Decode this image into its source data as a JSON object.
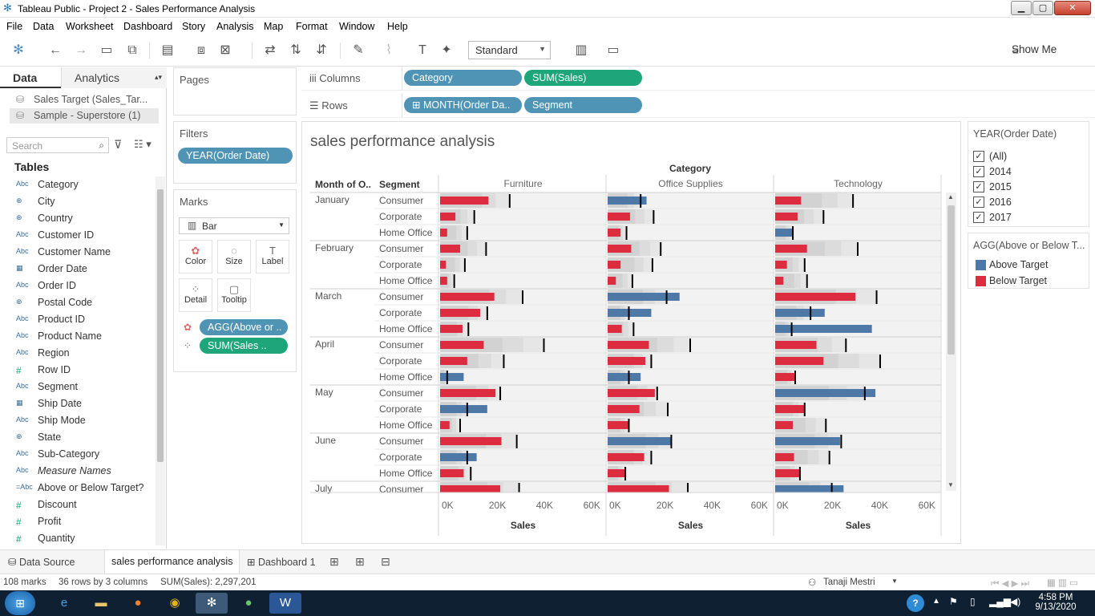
{
  "window": {
    "title": "Tableau Public - Project 2 - Sales Performance Analysis",
    "min": "▁",
    "max": "▢",
    "close": "✕"
  },
  "menu": [
    "File",
    "Data",
    "Worksheet",
    "Dashboard",
    "Story",
    "Analysis",
    "Map",
    "Format",
    "Window",
    "Help"
  ],
  "toolbar": {
    "fit_select": "Standard",
    "show_me": "Show Me"
  },
  "left": {
    "tab_data": "Data",
    "tab_analytics": "Analytics",
    "datasources": [
      "Sales Target (Sales_Tar...",
      "Sample - Superstore (1)"
    ],
    "search_placeholder": "Search",
    "tables_label": "Tables",
    "fields": [
      {
        "type": "Abc",
        "name": "Category"
      },
      {
        "type": "⊕",
        "name": "City"
      },
      {
        "type": "⊕",
        "name": "Country"
      },
      {
        "type": "Abc",
        "name": "Customer ID"
      },
      {
        "type": "Abc",
        "name": "Customer Name"
      },
      {
        "type": "▦",
        "name": "Order Date"
      },
      {
        "type": "Abc",
        "name": "Order ID"
      },
      {
        "type": "⊕",
        "name": "Postal Code"
      },
      {
        "type": "Abc",
        "name": "Product ID"
      },
      {
        "type": "Abc",
        "name": "Product Name"
      },
      {
        "type": "Abc",
        "name": "Region"
      },
      {
        "type": "#",
        "name": "Row ID"
      },
      {
        "type": "Abc",
        "name": "Segment"
      },
      {
        "type": "▦",
        "name": "Ship Date"
      },
      {
        "type": "Abc",
        "name": "Ship Mode"
      },
      {
        "type": "⊕",
        "name": "State"
      },
      {
        "type": "Abc",
        "name": "Sub-Category"
      },
      {
        "type": "Abc",
        "name": "Measure Names"
      },
      {
        "type": "=Abc",
        "name": "Above or Below Target?"
      },
      {
        "type": "#",
        "name": "Discount"
      },
      {
        "type": "#",
        "name": "Profit"
      },
      {
        "type": "#",
        "name": "Quantity"
      }
    ]
  },
  "pages_label": "Pages",
  "filters": {
    "label": "Filters",
    "pill": "YEAR(Order Date)"
  },
  "marks": {
    "label": "Marks",
    "type": "Bar",
    "buttons": [
      "Color",
      "Size",
      "Label",
      "Detail",
      "Tooltip"
    ],
    "pill_color": "AGG(Above or ..",
    "pill_size": "SUM(Sales .."
  },
  "shelves": {
    "columns_label": "Columns",
    "rows_label": "Rows",
    "columns": [
      "Category",
      "SUM(Sales)"
    ],
    "rows": [
      "MONTH(Order Da..",
      "Segment"
    ]
  },
  "view": {
    "title": "sales performance analysis",
    "category_header": "Category",
    "row_header_month": "Month of O..",
    "row_header_segment": "Segment",
    "axis_label": "Sales",
    "axis_ticks": [
      "0K",
      "20K",
      "40K",
      "60K"
    ]
  },
  "chart_data": {
    "type": "bar",
    "title": "sales performance analysis",
    "xlabel": "Sales",
    "xlim": [
      0,
      70000
    ],
    "panes": [
      "Furniture",
      "Office Supplies",
      "Technology"
    ],
    "months": [
      "January",
      "February",
      "March",
      "April",
      "May",
      "June",
      "July"
    ],
    "segments": [
      "Consumer",
      "Corporate",
      "Home Office"
    ],
    "series_meaning": {
      "bar": "SUM(Sales)",
      "reference_line": "Sales Target",
      "color": "AGG(Above or Below Target?)"
    },
    "colors": {
      "Above Target": "#4e79a7",
      "Below Target": "#dd2c40"
    },
    "rows": [
      {
        "month": "January",
        "segment": "Consumer",
        "values": [
          [
            20500,
            29500,
            "below"
          ],
          [
            16500,
            14000,
            "above"
          ],
          [
            11000,
            33000,
            "below"
          ]
        ]
      },
      {
        "month": "January",
        "segment": "Corporate",
        "values": [
          [
            6500,
            14500,
            "below"
          ],
          [
            9500,
            19500,
            "below"
          ],
          [
            9500,
            20500,
            "below"
          ]
        ]
      },
      {
        "month": "January",
        "segment": "Home Office",
        "values": [
          [
            3000,
            11500,
            "below"
          ],
          [
            5500,
            8000,
            "below"
          ],
          [
            7500,
            7500,
            "above"
          ]
        ]
      },
      {
        "month": "February",
        "segment": "Consumer",
        "values": [
          [
            8500,
            19500,
            "below"
          ],
          [
            10000,
            22500,
            "below"
          ],
          [
            13500,
            35000,
            "below"
          ]
        ]
      },
      {
        "month": "February",
        "segment": "Corporate",
        "values": [
          [
            2500,
            10500,
            "below"
          ],
          [
            5500,
            19000,
            "below"
          ],
          [
            5000,
            12500,
            "below"
          ]
        ]
      },
      {
        "month": "February",
        "segment": "Home Office",
        "values": [
          [
            3000,
            6000,
            "below"
          ],
          [
            3500,
            10500,
            "below"
          ],
          [
            3500,
            13500,
            "below"
          ]
        ]
      },
      {
        "month": "March",
        "segment": "Consumer",
        "values": [
          [
            23000,
            35000,
            "below"
          ],
          [
            30500,
            25000,
            "above"
          ],
          [
            34000,
            43000,
            "below"
          ]
        ]
      },
      {
        "month": "March",
        "segment": "Corporate",
        "values": [
          [
            17000,
            20000,
            "below"
          ],
          [
            18500,
            9000,
            "above"
          ],
          [
            21000,
            15000,
            "above"
          ]
        ]
      },
      {
        "month": "March",
        "segment": "Home Office",
        "values": [
          [
            9500,
            12000,
            "below"
          ],
          [
            6000,
            11000,
            "below"
          ],
          [
            41000,
            7000,
            "above"
          ]
        ]
      },
      {
        "month": "April",
        "segment": "Consumer",
        "values": [
          [
            18500,
            44000,
            "below"
          ],
          [
            17500,
            35000,
            "below"
          ],
          [
            17500,
            30000,
            "below"
          ]
        ]
      },
      {
        "month": "April",
        "segment": "Corporate",
        "values": [
          [
            11500,
            27000,
            "below"
          ],
          [
            16000,
            18500,
            "below"
          ],
          [
            20500,
            44500,
            "below"
          ]
        ]
      },
      {
        "month": "April",
        "segment": "Home Office",
        "values": [
          [
            10000,
            3000,
            "above"
          ],
          [
            14000,
            9000,
            "above"
          ],
          [
            8500,
            8500,
            "below"
          ]
        ]
      },
      {
        "month": "May",
        "segment": "Consumer",
        "values": [
          [
            23500,
            25500,
            "below"
          ],
          [
            20000,
            21000,
            "below"
          ],
          [
            42500,
            38000,
            "above"
          ]
        ]
      },
      {
        "month": "May",
        "segment": "Corporate",
        "values": [
          [
            20000,
            11500,
            "above"
          ],
          [
            13500,
            25500,
            "below"
          ],
          [
            12500,
            12500,
            "below"
          ]
        ]
      },
      {
        "month": "May",
        "segment": "Home Office",
        "values": [
          [
            4000,
            8500,
            "below"
          ],
          [
            9000,
            9000,
            "below"
          ],
          [
            7500,
            21500,
            "below"
          ]
        ]
      },
      {
        "month": "June",
        "segment": "Consumer",
        "values": [
          [
            26000,
            32500,
            "below"
          ],
          [
            27000,
            27000,
            "above"
          ],
          [
            27500,
            28000,
            "above"
          ]
        ]
      },
      {
        "month": "June",
        "segment": "Corporate",
        "values": [
          [
            15500,
            11500,
            "above"
          ],
          [
            15500,
            18500,
            "below"
          ],
          [
            8000,
            23000,
            "below"
          ]
        ]
      },
      {
        "month": "June",
        "segment": "Home Office",
        "values": [
          [
            10000,
            13000,
            "below"
          ],
          [
            7500,
            7500,
            "below"
          ],
          [
            10500,
            10500,
            "below"
          ]
        ]
      },
      {
        "month": "July",
        "segment": "Consumer",
        "values": [
          [
            25500,
            33500,
            "below"
          ],
          [
            26000,
            34000,
            "below"
          ],
          [
            29000,
            24000,
            "above"
          ]
        ]
      }
    ]
  },
  "legend_year": {
    "title": "YEAR(Order Date)",
    "items": [
      "(All)",
      "2014",
      "2015",
      "2016",
      "2017"
    ],
    "check": "✓"
  },
  "legend_color": {
    "title": "AGG(Above or Below T...",
    "items": [
      {
        "label": "Above Target",
        "color": "#4e79a7"
      },
      {
        "label": "Below Target",
        "color": "#dd2c40"
      }
    ]
  },
  "sheets": {
    "datasource": "Data Source",
    "active": "sales performance analysis",
    "dashboard": "Dashboard 1"
  },
  "status": {
    "marks": "108 marks",
    "rowscols": "36 rows by 3 columns",
    "sum": "SUM(Sales): 2,297,201",
    "user": "Tanaji Mestri"
  },
  "taskbar": {
    "time": "4:58 PM",
    "date": "9/13/2020"
  }
}
